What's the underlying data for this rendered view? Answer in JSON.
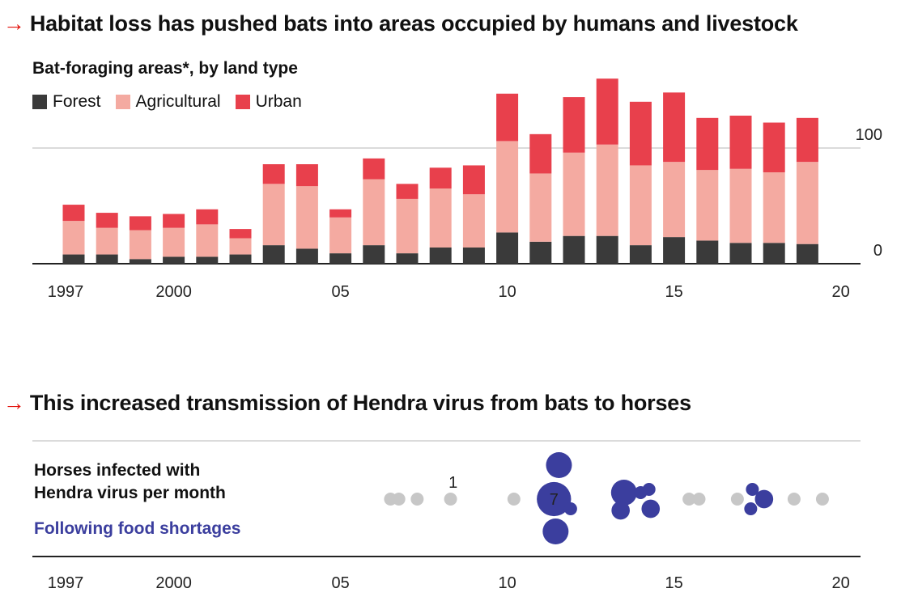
{
  "chart_data": [
    {
      "type": "bar",
      "title": "Habitat loss has pushed bats into areas occupied by humans and livestock",
      "subtitle": "Bat-foraging areas*, by land type",
      "legend": [
        "Forest",
        "Agricultural",
        "Urban"
      ],
      "colors": {
        "Forest": "#3a3a3a",
        "Agricultural": "#f4aaa1",
        "Urban": "#e8404c"
      },
      "stacked": true,
      "x": [
        1997,
        1998,
        1999,
        2000,
        2001,
        2002,
        2003,
        2004,
        2005,
        2006,
        2007,
        2008,
        2009,
        2010,
        2011,
        2012,
        2013,
        2014,
        2015,
        2016,
        2017,
        2018,
        2019
      ],
      "series": [
        {
          "name": "Forest",
          "values": [
            8,
            8,
            4,
            6,
            6,
            8,
            16,
            13,
            9,
            16,
            9,
            14,
            14,
            27,
            19,
            24,
            24,
            16,
            23,
            20,
            18,
            18,
            17
          ]
        },
        {
          "name": "Agricultural",
          "values": [
            29,
            23,
            25,
            25,
            28,
            14,
            53,
            54,
            31,
            57,
            47,
            51,
            46,
            79,
            59,
            72,
            79,
            69,
            65,
            61,
            64,
            61,
            71
          ]
        },
        {
          "name": "Urban",
          "values": [
            14,
            13,
            12,
            12,
            13,
            8,
            17,
            19,
            7,
            18,
            13,
            18,
            25,
            41,
            34,
            48,
            57,
            55,
            60,
            45,
            46,
            43,
            38
          ]
        }
      ],
      "ylim": [
        0,
        165
      ],
      "yticks": [
        0,
        100
      ],
      "xticks": [
        "1997",
        "2000",
        "05",
        "10",
        "15",
        "20"
      ],
      "xtick_values": [
        1997,
        2000,
        2005,
        2010,
        2015,
        2020
      ],
      "grid": true
    },
    {
      "type": "scatter",
      "title": "This increased transmission of Hendra virus from bats to horses",
      "ylabel": "Horses infected with Hendra virus per month",
      "highlight_label": "Following food shortages",
      "colors": {
        "normal": "#c7c7c7",
        "highlight": "#3b3e9e"
      },
      "xticks": [
        "1997",
        "2000",
        "05",
        "10",
        "15",
        "20"
      ],
      "xtick_values": [
        1997,
        2000,
        2005,
        2010,
        2015,
        2020
      ],
      "size_annotations": [
        {
          "x": 2008.4,
          "value": 1,
          "label": "1"
        },
        {
          "x": 2011.4,
          "value": 7,
          "label": "7"
        }
      ],
      "points": [
        {
          "x": 2006.5,
          "value": 1,
          "highlight": false
        },
        {
          "x": 2006.75,
          "value": 1,
          "highlight": false
        },
        {
          "x": 2007.3,
          "value": 1,
          "highlight": false
        },
        {
          "x": 2008.3,
          "value": 1,
          "highlight": false
        },
        {
          "x": 2010.2,
          "value": 1,
          "highlight": false
        },
        {
          "x": 2011.55,
          "value": 4,
          "highlight": true
        },
        {
          "x": 2011.4,
          "value": 7,
          "highlight": true
        },
        {
          "x": 2011.9,
          "value": 1,
          "highlight": true
        },
        {
          "x": 2011.45,
          "value": 4,
          "highlight": true
        },
        {
          "x": 2013.5,
          "value": 4,
          "highlight": true
        },
        {
          "x": 2013.4,
          "value": 2,
          "highlight": true
        },
        {
          "x": 2014.25,
          "value": 1,
          "highlight": true
        },
        {
          "x": 2014.0,
          "value": 1,
          "highlight": true
        },
        {
          "x": 2014.3,
          "value": 2,
          "highlight": true
        },
        {
          "x": 2015.45,
          "value": 1,
          "highlight": false
        },
        {
          "x": 2015.75,
          "value": 1,
          "highlight": false
        },
        {
          "x": 2016.9,
          "value": 1,
          "highlight": false
        },
        {
          "x": 2017.35,
          "value": 1,
          "highlight": true
        },
        {
          "x": 2017.7,
          "value": 2,
          "highlight": true
        },
        {
          "x": 2017.3,
          "value": 1,
          "highlight": true
        },
        {
          "x": 2018.6,
          "value": 1,
          "highlight": false
        },
        {
          "x": 2019.45,
          "value": 1,
          "highlight": false
        }
      ]
    }
  ]
}
